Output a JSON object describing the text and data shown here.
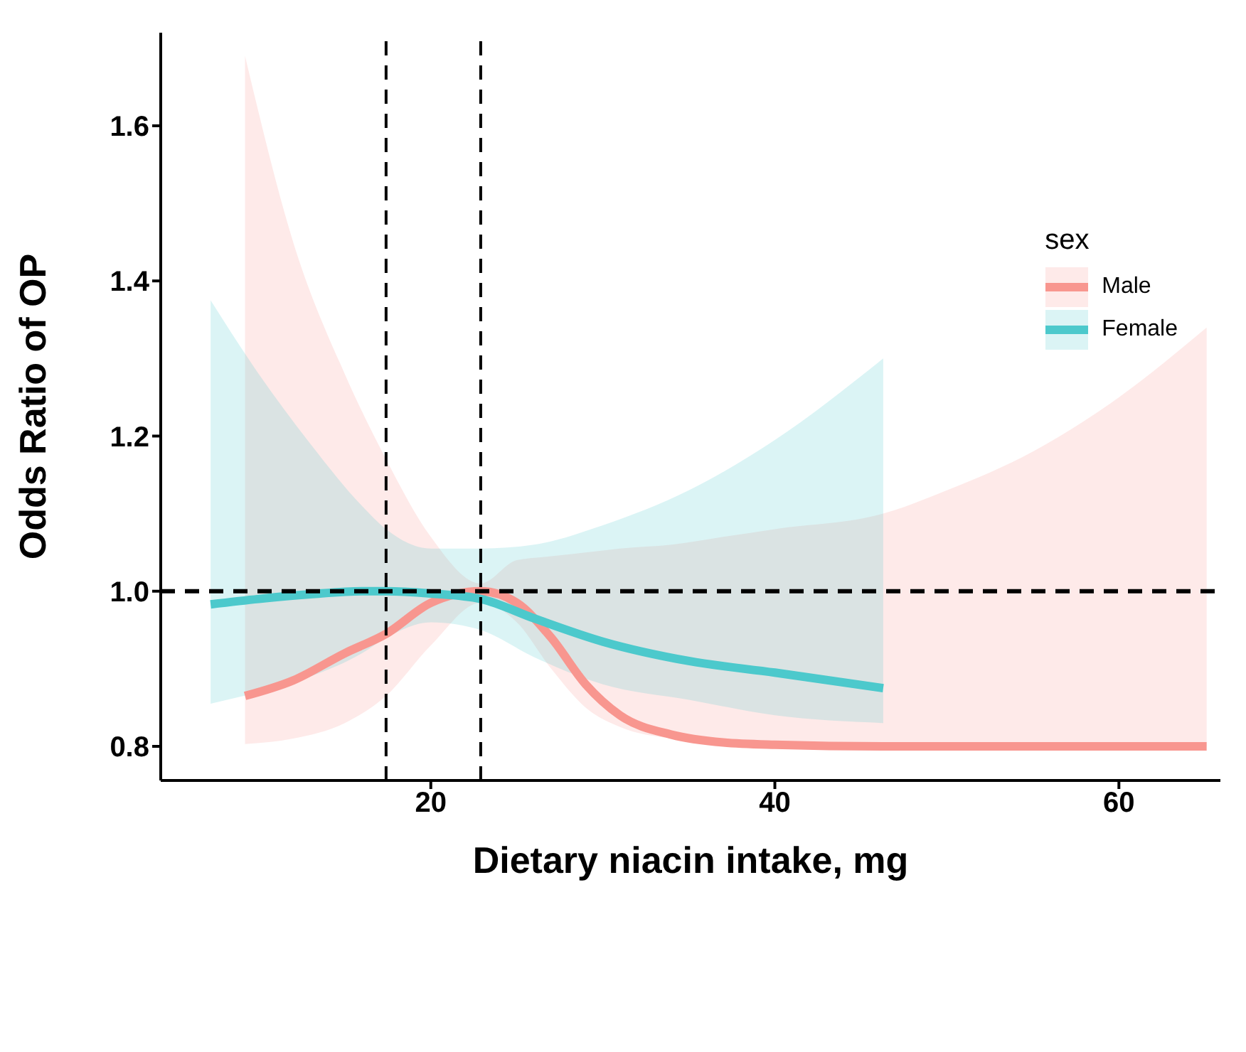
{
  "chart_data": {
    "type": "line",
    "xlabel": "Dietary niacin intake, mg",
    "ylabel": "Odds Ratio of OP",
    "legend_title": "sex",
    "legend": "top right",
    "grid": false,
    "line_style": "solid",
    "marker": "none",
    "xlim": [
      4.3,
      65.9
    ],
    "xticks": [
      20,
      40,
      60
    ],
    "ylim": [
      0.756,
      1.72
    ],
    "yticks": [
      {
        "value": 0.8,
        "label": "0.8"
      },
      {
        "value": 1.0,
        "label": "1.0"
      },
      {
        "value": 1.2,
        "label": "1.2"
      },
      {
        "value": 1.4,
        "label": "1.4"
      },
      {
        "value": 1.6,
        "label": "1.6"
      }
    ],
    "series": [
      {
        "name": "Male",
        "color": "#f8968f",
        "x": [
          9.2,
          12,
          15,
          17.4,
          20,
          22.9,
          25,
          27,
          29,
          31,
          34,
          37,
          40,
          46.3,
          50,
          55,
          60,
          65.1
        ],
        "values": [
          0.865,
          0.885,
          0.92,
          0.945,
          0.985,
          1.0,
          0.985,
          0.94,
          0.88,
          0.84,
          0.815,
          0.805,
          0.802,
          0.8,
          0.8,
          0.8,
          0.8,
          0.8
        ],
        "lower": [
          0.803,
          0.81,
          0.83,
          0.865,
          0.93,
          0.985,
          0.96,
          0.9,
          0.85,
          0.825,
          0.81,
          0.805,
          0.8,
          0.8,
          0.8,
          0.8,
          0.8,
          0.8
        ],
        "upper": [
          1.69,
          1.45,
          1.28,
          1.17,
          1.07,
          1.01,
          1.04,
          1.045,
          1.05,
          1.055,
          1.06,
          1.07,
          1.08,
          1.1,
          1.13,
          1.18,
          1.25,
          1.34
        ]
      },
      {
        "name": "Female",
        "color": "#4cc9cc",
        "x": [
          7.2,
          10,
          13,
          16,
          17.4,
          20,
          22.9,
          26,
          30,
          35,
          40,
          46.3
        ],
        "values": [
          0.983,
          0.99,
          0.996,
          1.0,
          1.0,
          0.997,
          0.99,
          0.965,
          0.935,
          0.91,
          0.895,
          0.875
        ],
        "lower": [
          0.855,
          0.87,
          0.89,
          0.92,
          0.94,
          0.96,
          0.95,
          0.915,
          0.88,
          0.86,
          0.84,
          0.83
        ],
        "upper": [
          1.375,
          1.28,
          1.19,
          1.11,
          1.08,
          1.055,
          1.055,
          1.06,
          1.085,
          1.13,
          1.195,
          1.3
        ]
      }
    ],
    "ref_lines": [
      {
        "axis": "y",
        "value": 1.0,
        "color": "#000000",
        "line_style": "dashed"
      },
      {
        "axis": "x",
        "value": 17.4,
        "color": "#000000",
        "line_style": "dashed"
      },
      {
        "axis": "x",
        "value": 22.9,
        "color": "#000000",
        "line_style": "dashed"
      }
    ]
  }
}
